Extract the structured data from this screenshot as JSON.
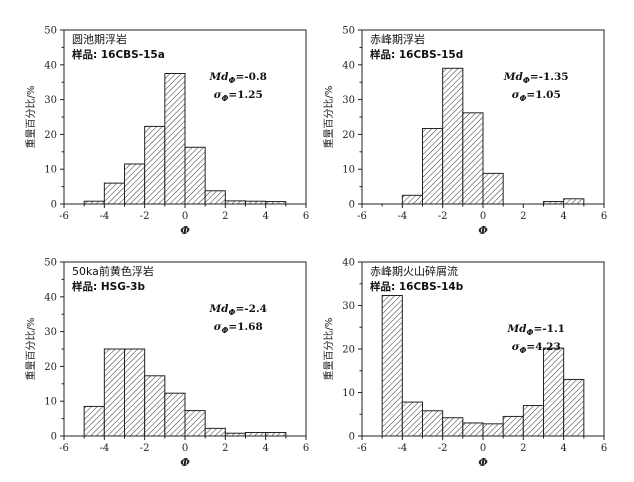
{
  "chart_data": [
    {
      "type": "bar",
      "title": "圆池期浮岩",
      "sample": "样品: 16CBS-15a",
      "stat_md": "=-0.8",
      "stat_sigma": "=1.25",
      "xlabel": "Φ",
      "ylabel": "重量百分比/%",
      "xlim": [
        -6,
        6
      ],
      "ylim": [
        0,
        50
      ],
      "xticks": [
        "-6",
        "-4",
        "-2",
        "0",
        "2",
        "4",
        "6"
      ],
      "yticks": [
        "0",
        "10",
        "20",
        "30",
        "40",
        "50"
      ],
      "bin_width": 1,
      "bins": [
        -4.5,
        -3.5,
        -2.5,
        -1.5,
        -0.5,
        0.5,
        1.5,
        2.5,
        3.5,
        4.5
      ],
      "values": [
        0.8,
        6,
        11.5,
        22.3,
        37.5,
        16.3,
        3.8,
        0.9,
        0.8,
        0.7
      ]
    },
    {
      "type": "bar",
      "title": "赤峰期浮岩",
      "sample": "样品: 16CBS-15d",
      "stat_md": "=-1.35",
      "stat_sigma": "=1.05",
      "xlabel": "Φ",
      "ylabel": "重量百分比/%",
      "xlim": [
        -6,
        6
      ],
      "ylim": [
        0,
        50
      ],
      "xticks": [
        "-6",
        "-4",
        "-2",
        "0",
        "2",
        "4",
        "6"
      ],
      "yticks": [
        "0",
        "10",
        "20",
        "30",
        "40",
        "50"
      ],
      "bin_width": 1,
      "bins": [
        -3.5,
        -2.5,
        -1.5,
        -0.5,
        0.5,
        3.5,
        4.5
      ],
      "values": [
        2.5,
        21.7,
        39,
        26.2,
        8.8,
        0.7,
        1.5
      ]
    },
    {
      "type": "bar",
      "title": "50ka前黄色浮岩",
      "sample": "样品: HSG-3b",
      "stat_md": "=-2.4",
      "stat_sigma": "=1.68",
      "xlabel": "Φ",
      "ylabel": "重量百分比/%",
      "xlim": [
        -6,
        6
      ],
      "ylim": [
        0,
        50
      ],
      "xticks": [
        "-6",
        "-4",
        "-2",
        "0",
        "2",
        "4",
        "6"
      ],
      "yticks": [
        "0",
        "10",
        "20",
        "30",
        "40",
        "50"
      ],
      "bin_width": 1,
      "bins": [
        -4.5,
        -3.5,
        -2.5,
        -1.5,
        -0.5,
        0.5,
        1.5,
        2.5,
        3.5,
        4.5
      ],
      "values": [
        8.5,
        25,
        25,
        17.3,
        12.3,
        7.3,
        2.2,
        0.8,
        1,
        1
      ]
    },
    {
      "type": "bar",
      "title": "赤峰期火山碎屑流",
      "sample": "样品: 16CBS-14b",
      "stat_md": "=-1.1",
      "stat_sigma": "=4.23",
      "xlabel": "Φ",
      "ylabel": "重量百分比/%",
      "xlim": [
        -6,
        6
      ],
      "ylim": [
        0,
        40
      ],
      "xticks": [
        "-6",
        "-4",
        "-2",
        "0",
        "2",
        "4",
        "6"
      ],
      "yticks": [
        "0",
        "10",
        "20",
        "30",
        "40"
      ],
      "bin_width": 1,
      "bins": [
        -4.5,
        -3.5,
        -2.5,
        -1.5,
        -0.5,
        0.5,
        1.5,
        2.5,
        3.5,
        4.5
      ],
      "values": [
        32.3,
        7.8,
        5.8,
        4.2,
        3,
        2.8,
        4.5,
        7,
        20.2,
        13
      ]
    }
  ]
}
